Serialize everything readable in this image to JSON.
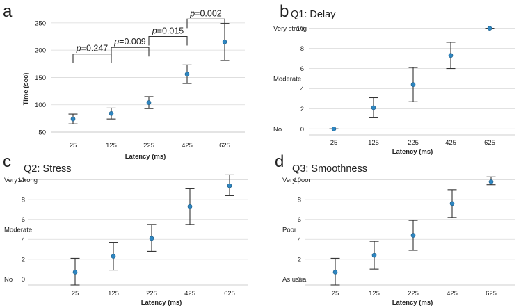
{
  "chart_data": [
    {
      "panel": "a",
      "type": "scatter",
      "title": "",
      "xlabel": "Latency (ms)",
      "ylabel": "Time (sec)",
      "ylim": [
        50,
        260
      ],
      "yticks": [
        "50",
        "100",
        "150",
        "200",
        "250"
      ],
      "yticks_values": [
        50,
        100,
        150,
        200,
        250
      ],
      "grid": true,
      "categories": [
        "25",
        "125",
        "225",
        "425",
        "625"
      ],
      "values": [
        74,
        84,
        104,
        156,
        215
      ],
      "err_low": [
        65,
        74,
        93,
        139,
        181
      ],
      "err_high": [
        83,
        94,
        115,
        173,
        249
      ],
      "annotations": [
        {
          "p_label": "p",
          "text": "=0.247",
          "between": [
            0,
            1
          ],
          "y": 193
        },
        {
          "p_label": "p",
          "text": "=0.009",
          "between": [
            1,
            2
          ],
          "y": 205
        },
        {
          "p_label": "p",
          "text": "=0.015",
          "between": [
            2,
            3
          ],
          "y": 225
        },
        {
          "p_label": "p",
          "text": "=0.002",
          "between": [
            3,
            4
          ],
          "y": 257
        }
      ]
    },
    {
      "panel": "b",
      "type": "scatter",
      "title": "Q1: Delay",
      "xlabel": "Latency (ms)",
      "ylabel": "",
      "ylim": [
        -0.6,
        10.6
      ],
      "yticks": [
        "0",
        "2",
        "4",
        "6",
        "8",
        "10"
      ],
      "yticks_values": [
        0,
        2,
        4,
        6,
        8,
        10
      ],
      "ycat_labels": [
        "No",
        "Moderate",
        "Very strong"
      ],
      "ycat_values": [
        0,
        5,
        10
      ],
      "grid": true,
      "categories": [
        "25",
        "125",
        "225",
        "425",
        "625"
      ],
      "values": [
        0,
        2.1,
        4.4,
        7.3,
        10
      ],
      "err_low": [
        0,
        1.1,
        2.7,
        6.0,
        10
      ],
      "err_high": [
        0,
        3.1,
        6.1,
        8.6,
        10
      ]
    },
    {
      "panel": "c",
      "type": "scatter",
      "title": "Q2: Stress",
      "xlabel": "Latency (ms)",
      "ylabel": "",
      "ylim": [
        -0.6,
        10.6
      ],
      "yticks": [
        "0",
        "2",
        "4",
        "6",
        "8",
        "10"
      ],
      "yticks_values": [
        0,
        2,
        4,
        6,
        8,
        10
      ],
      "ycat_labels": [
        "No",
        "Moderate",
        "Very strong"
      ],
      "ycat_values": [
        0,
        5,
        10
      ],
      "grid": true,
      "categories": [
        "25",
        "125",
        "225",
        "425",
        "625"
      ],
      "values": [
        0.7,
        2.3,
        4.1,
        7.3,
        9.4
      ],
      "err_low": [
        -0.6,
        0.9,
        2.8,
        5.5,
        8.4
      ],
      "err_high": [
        2.1,
        3.7,
        5.5,
        9.1,
        10.5
      ]
    },
    {
      "panel": "d",
      "type": "scatter",
      "title": "Q3: Smoothness",
      "xlabel": "Latency (ms)",
      "ylabel": "",
      "ylim": [
        -0.6,
        10.6
      ],
      "yticks": [
        "0",
        "2",
        "4",
        "6",
        "8",
        "10"
      ],
      "yticks_values": [
        0,
        2,
        4,
        6,
        8,
        10
      ],
      "ycat_labels": [
        "As usual",
        "Poor",
        "Very poor"
      ],
      "ycat_values": [
        0,
        5,
        10
      ],
      "grid": true,
      "categories": [
        "25",
        "125",
        "225",
        "425",
        "625"
      ],
      "values": [
        0.7,
        2.4,
        4.4,
        7.6,
        9.8
      ],
      "err_low": [
        -0.6,
        1.0,
        2.9,
        6.2,
        9.5
      ],
      "err_high": [
        2.1,
        3.8,
        5.9,
        9.0,
        10.3
      ]
    }
  ]
}
